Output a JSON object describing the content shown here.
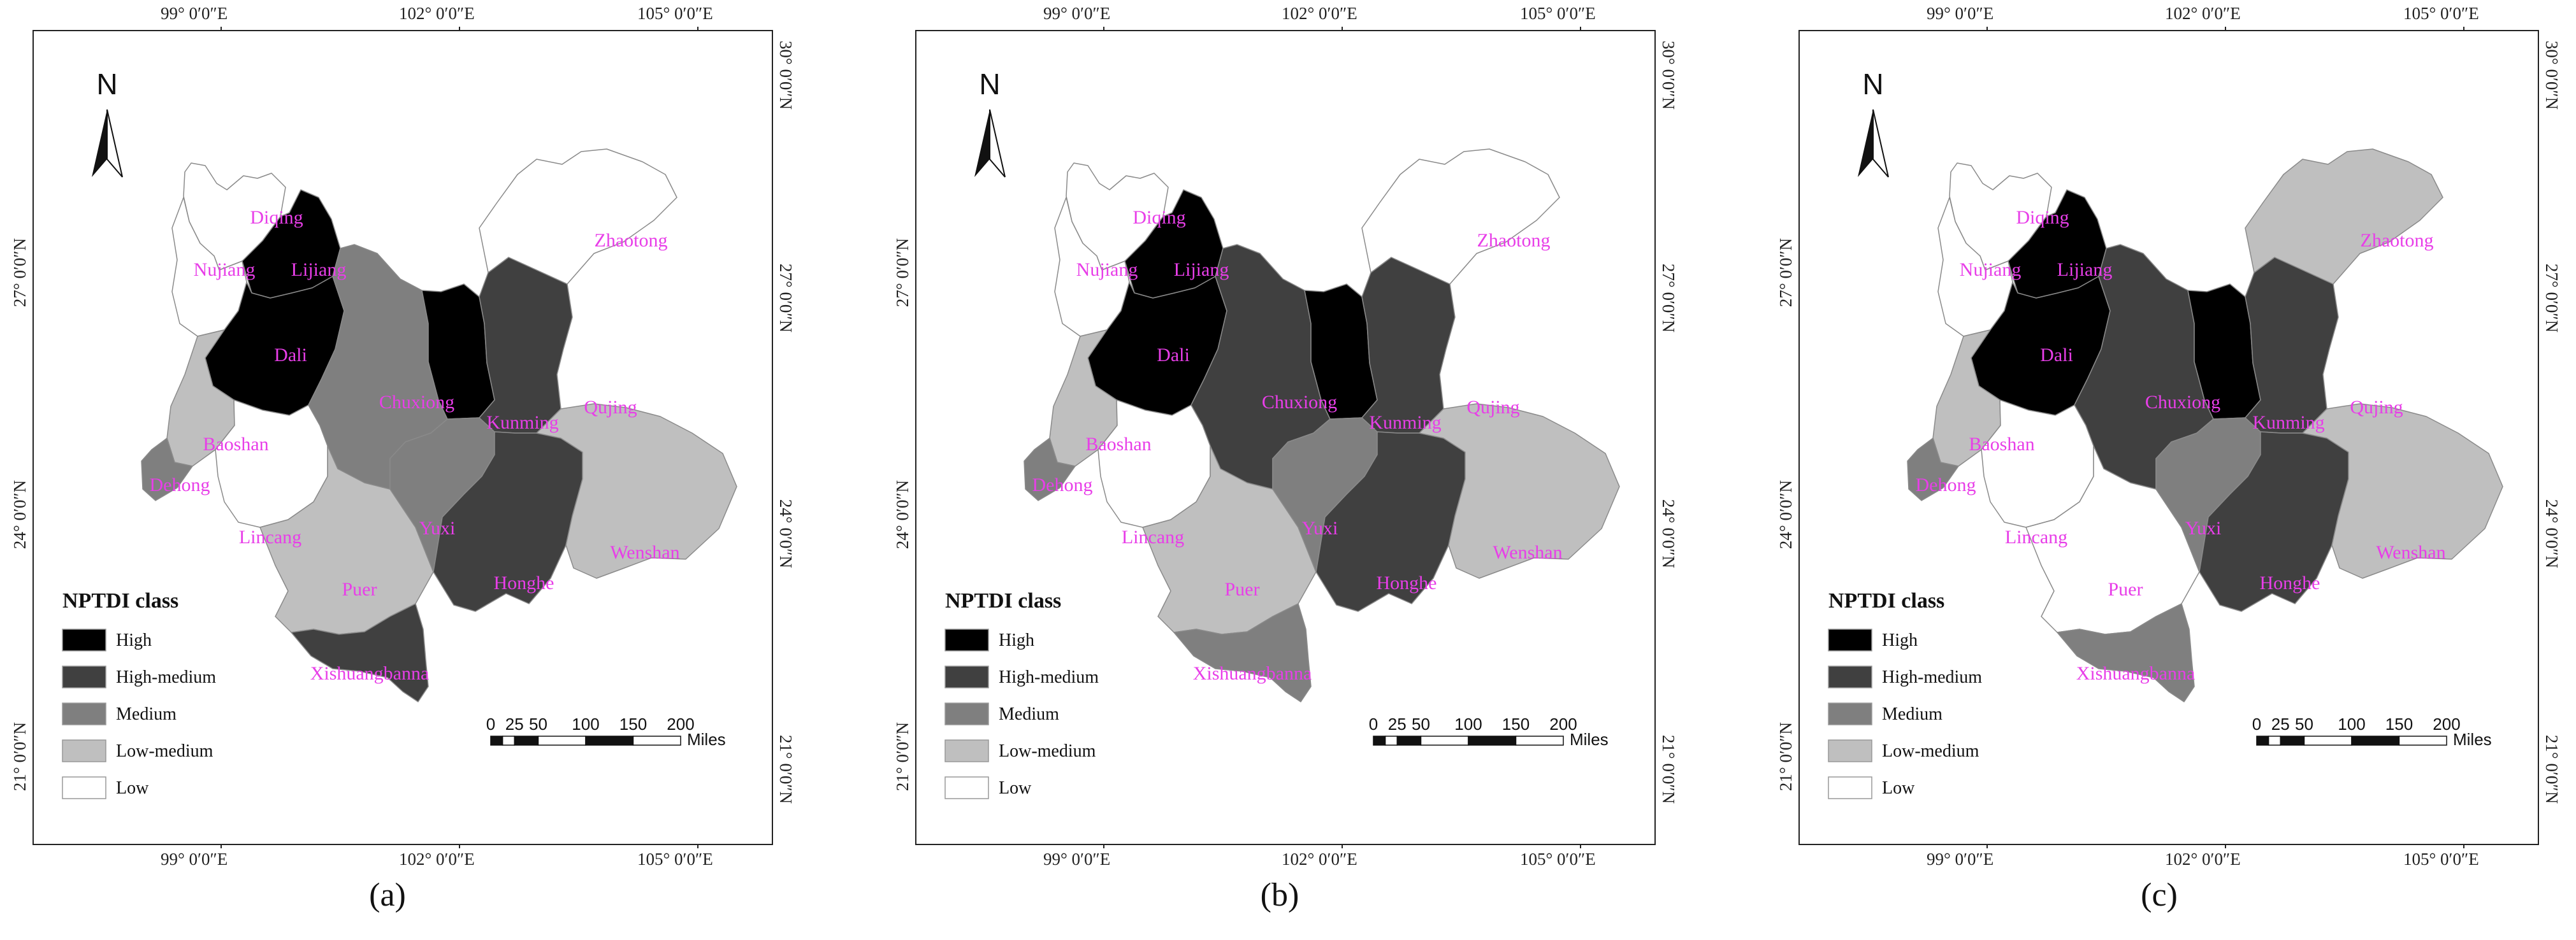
{
  "panels": [
    {
      "label": "(a)",
      "classes": {
        "Diqing": "Low",
        "Nujiang": "Low",
        "Lijiang": "High",
        "Dali": "High",
        "Baoshan": "Low-medium",
        "Dehong": "Medium",
        "Lincang": "Low",
        "Puer": "Low-medium",
        "Xishuangbanna": "High-medium",
        "Chuxiong": "Medium",
        "Yuxi": "Medium",
        "Kunming": "High",
        "Qujing": "High-medium",
        "Honghe": "High-medium",
        "Wenshan": "Low-medium",
        "Zhaotong": "Low"
      }
    },
    {
      "label": "(b)",
      "classes": {
        "Diqing": "Low",
        "Nujiang": "Low",
        "Lijiang": "High",
        "Dali": "High",
        "Baoshan": "Low-medium",
        "Dehong": "Medium",
        "Lincang": "Low",
        "Puer": "Low-medium",
        "Xishuangbanna": "Medium",
        "Chuxiong": "High-medium",
        "Yuxi": "Medium",
        "Kunming": "High",
        "Qujing": "High-medium",
        "Honghe": "High-medium",
        "Wenshan": "Low-medium",
        "Zhaotong": "Low"
      }
    },
    {
      "label": "(c)",
      "classes": {
        "Diqing": "Low",
        "Nujiang": "Low",
        "Lijiang": "High",
        "Dali": "High",
        "Baoshan": "Low-medium",
        "Dehong": "Medium",
        "Lincang": "Low",
        "Puer": "Low",
        "Xishuangbanna": "Medium",
        "Chuxiong": "High-medium",
        "Yuxi": "Medium",
        "Kunming": "High",
        "Qujing": "High-medium",
        "Honghe": "High-medium",
        "Wenshan": "Low-medium",
        "Zhaotong": "Low-medium"
      }
    }
  ],
  "legend": {
    "title": "NPTDI class",
    "items": [
      {
        "label": "High",
        "color": "#000000"
      },
      {
        "label": "High-medium",
        "color": "#404040"
      },
      {
        "label": "Medium",
        "color": "#7f7f7f"
      },
      {
        "label": "Low-medium",
        "color": "#bfbfbf"
      },
      {
        "label": "Low",
        "color": "#ffffff"
      }
    ]
  },
  "axes": {
    "top": [
      "99° 0′0″E",
      "102° 0′0″E",
      "105° 0′0″E"
    ],
    "bottom": [
      "99° 0′0″E",
      "102° 0′0″E",
      "105° 0′0″E"
    ],
    "left": [
      "27° 0′0″N",
      "24° 0′0″N",
      "21° 0′0″N"
    ],
    "right": [
      "30° 0′0″N",
      "27° 0′0″N",
      "24° 0′0″N",
      "21° 0′0″N"
    ]
  },
  "scale_bar": {
    "ticks": [
      "0",
      "25",
      "50",
      "100",
      "150",
      "200"
    ],
    "unit": "Miles"
  },
  "north_arrow": "N",
  "region_label_color": "#e83ee8"
}
